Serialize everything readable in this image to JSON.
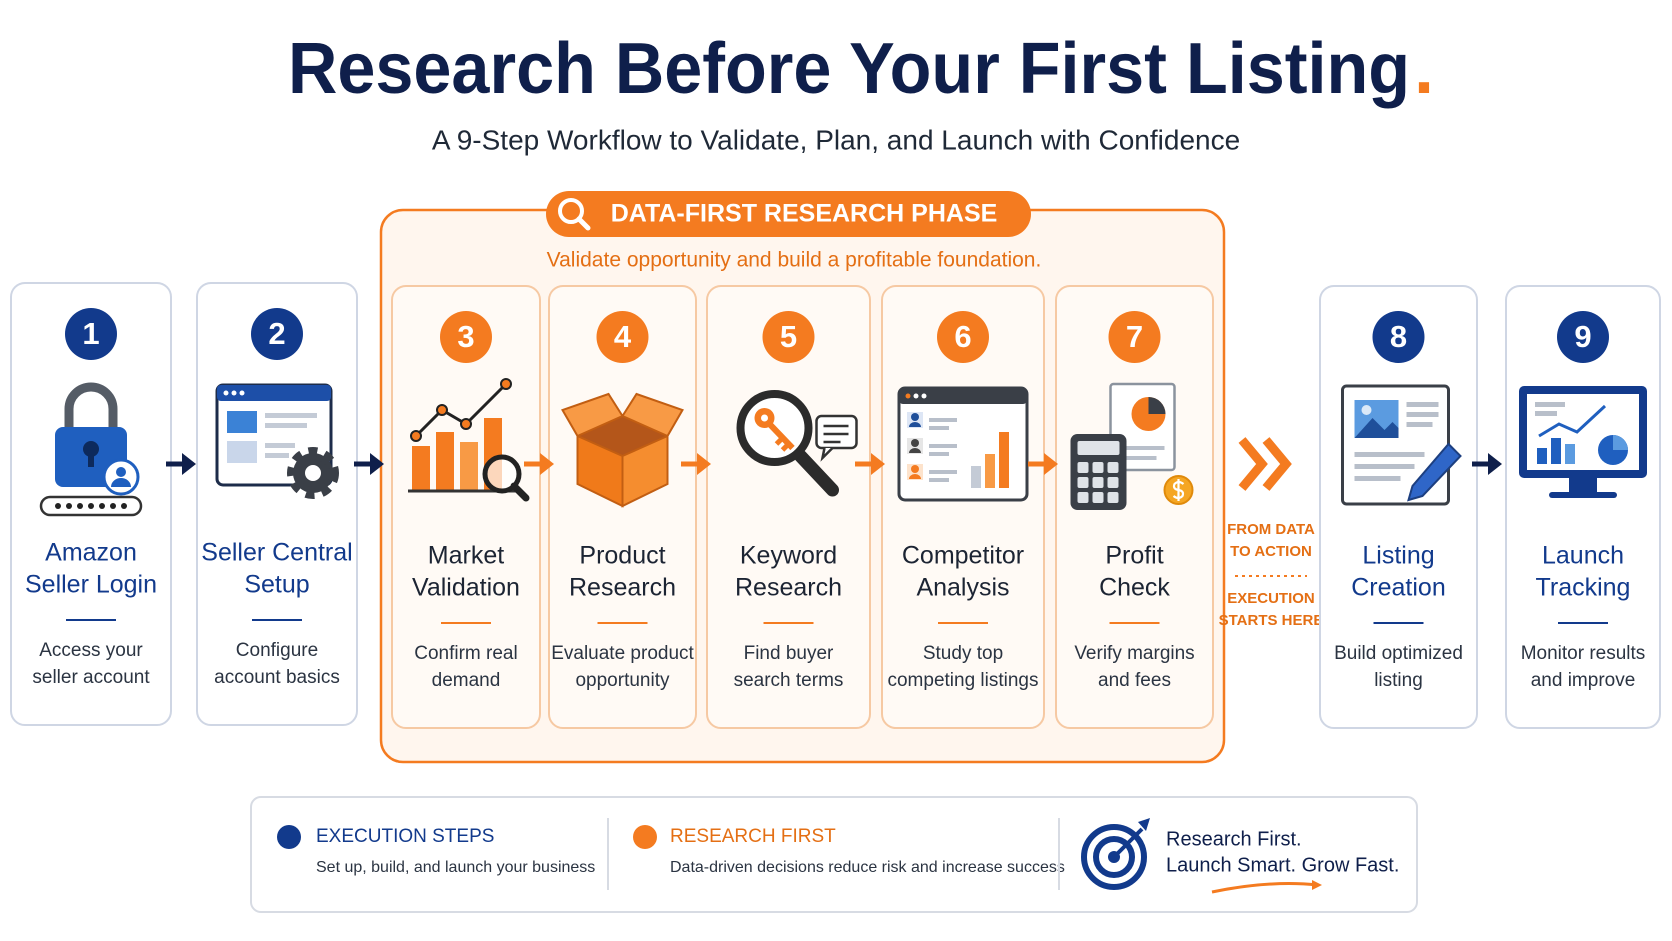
{
  "header": {
    "title": "Research Before Your First Listing",
    "title_mark": ".",
    "subtitle": "A 9-Step Workflow to Validate, Plan, and Launch with Confidence"
  },
  "steps_before": [
    {
      "number": 1,
      "title_lines": [
        "Amazon",
        "Seller Login"
      ],
      "description_lines": [
        "Access your",
        "seller account"
      ]
    },
    {
      "number": 2,
      "title_lines": [
        "Seller Central",
        "Setup"
      ],
      "description_lines": [
        "Configure",
        "account basics"
      ]
    }
  ],
  "phase": {
    "label": "DATA-FIRST RESEARCH PHASE",
    "description": "Validate opportunity and build a profitable foundation.",
    "steps": [
      {
        "number": 3,
        "title_lines": [
          "Market",
          "Validation"
        ],
        "description_lines": [
          "Confirm real",
          "demand"
        ]
      },
      {
        "number": 4,
        "title_lines": [
          "Product",
          "Research"
        ],
        "description_lines": [
          "Evaluate product",
          "opportunity"
        ]
      },
      {
        "number": 5,
        "title_lines": [
          "Keyword",
          "Research"
        ],
        "description_lines": [
          "Find buyer",
          "search terms"
        ]
      },
      {
        "number": 6,
        "title_lines": [
          "Competitor",
          "Analysis"
        ],
        "description_lines": [
          "Study top",
          "competing listings"
        ]
      },
      {
        "number": 7,
        "title_lines": [
          "Profit",
          "Check"
        ],
        "description_lines": [
          "Verify margins",
          "and fees"
        ]
      }
    ]
  },
  "transition": {
    "top_lines": [
      "FROM DATA",
      "TO ACTION"
    ],
    "bottom_lines": [
      "EXECUTION",
      "STARTS HERE"
    ]
  },
  "steps_after": [
    {
      "number": 8,
      "title_lines": [
        "Listing",
        "Creation"
      ],
      "description_lines": [
        "Build optimized",
        "listing"
      ]
    },
    {
      "number": 9,
      "title_lines": [
        "Launch",
        "Tracking"
      ],
      "description_lines": [
        "Monitor results",
        "and improve"
      ]
    }
  ],
  "legend": [
    {
      "title": "EXECUTION STEPS",
      "description": "Set up, build, and launch your business"
    },
    {
      "title": "RESEARCH FIRST",
      "description": "Data-driven decisions reduce risk and increase success"
    }
  ],
  "tagline": [
    "Research First.",
    "Launch Smart. Grow Fast."
  ]
}
